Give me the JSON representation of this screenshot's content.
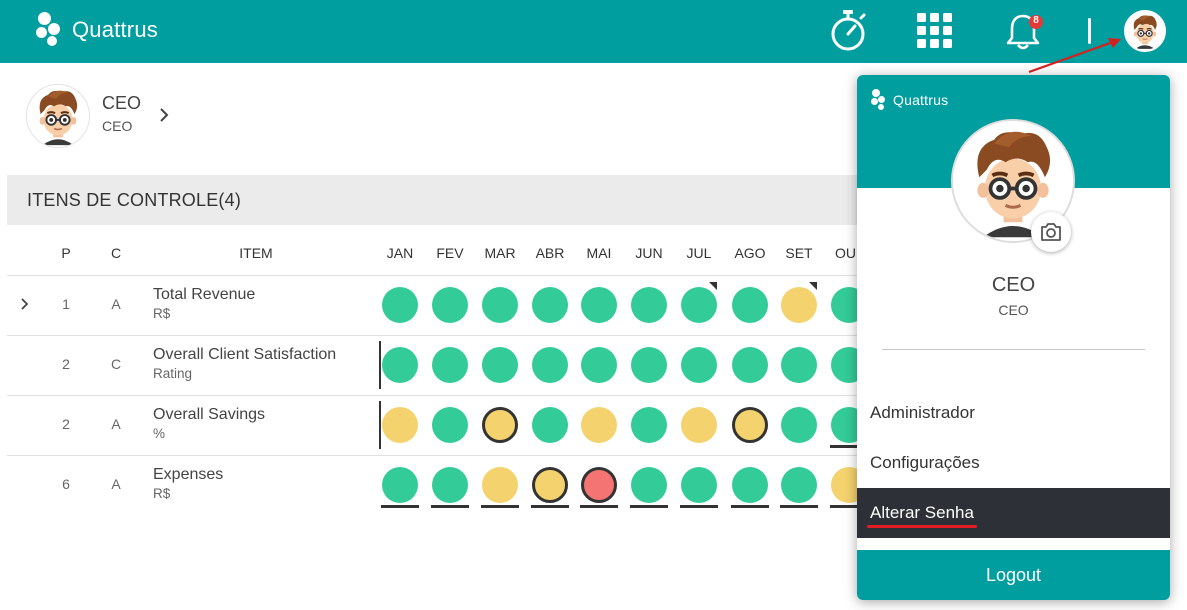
{
  "app": {
    "brand": "Quattrus",
    "notification_count": "8",
    "colors": {
      "teal": "#009e9e",
      "green": "#33cc99",
      "yellow": "#f4d26e",
      "red": "#f47373",
      "dark": "#2d3036"
    }
  },
  "icons": [
    "stopwatch-icon",
    "apps-grid-icon",
    "bell-icon",
    "avatar",
    "chevron-right-icon",
    "camera-icon",
    "kebab-icon"
  ],
  "profile": {
    "name": "CEO",
    "role": "CEO"
  },
  "section": {
    "title": "ITENS DE CONTROLE(4)"
  },
  "table": {
    "headers": {
      "p": "P",
      "c": "C",
      "item": "ITEM"
    },
    "months": [
      "JAN",
      "FEV",
      "MAR",
      "ABR",
      "MAI",
      "JUN",
      "JUL",
      "AGO",
      "SET",
      "OU"
    ],
    "rows": [
      {
        "p": "1",
        "c": "A",
        "title": "Total Revenue",
        "unit": "R$",
        "status": [
          "green",
          "green",
          "green",
          "green",
          "green",
          "green",
          "green",
          "green",
          "yellow",
          "green"
        ]
      },
      {
        "p": "2",
        "c": "C",
        "title": "Overall Client Satisfaction",
        "unit": "Rating",
        "status": [
          "green",
          "green",
          "green",
          "green",
          "green",
          "green",
          "green",
          "green",
          "green",
          "green"
        ]
      },
      {
        "p": "2",
        "c": "A",
        "title": "Overall Savings",
        "unit": "%",
        "status": [
          "yellow",
          "green",
          "yellow",
          "green",
          "yellow",
          "green",
          "yellow",
          "yellow",
          "green",
          "green"
        ]
      },
      {
        "p": "6",
        "c": "A",
        "title": "Expenses",
        "unit": "R$",
        "status": [
          "green",
          "green",
          "yellow",
          "yellow",
          "red",
          "green",
          "green",
          "green",
          "green",
          "yellow"
        ]
      }
    ]
  },
  "dropdown": {
    "brand": "Quattrus",
    "name": "CEO",
    "role": "CEO",
    "items": [
      "Administrador",
      "Configurações",
      "Alterar Senha"
    ],
    "logout": "Logout"
  }
}
